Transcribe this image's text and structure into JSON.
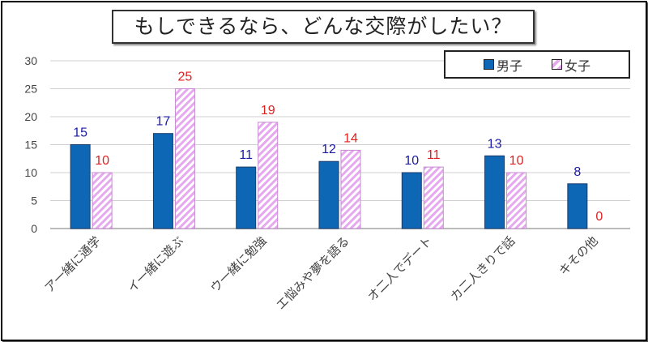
{
  "chart_data": {
    "type": "bar",
    "title": "もしできるなら、どんな交際がしたい？",
    "categories": [
      "ア一緒に通学",
      "イ一緒に遊ぶ",
      "ウ一緒に勉強",
      "エ悩みや夢を語る",
      "オ二人でデート",
      "カ二人きりで話",
      "キその他"
    ],
    "series": [
      {
        "name": "男子",
        "values": [
          15,
          17,
          11,
          12,
          10,
          13,
          8
        ],
        "color": "#0e67b5",
        "label_color": "#1a1aa6"
      },
      {
        "name": "女子",
        "values": [
          10,
          25,
          19,
          14,
          11,
          10,
          0
        ],
        "color": "#e6a8ef",
        "label_color": "#e02020",
        "pattern": "diagonal-stripes"
      }
    ],
    "ylim": [
      0,
      30
    ],
    "yticks": [
      0,
      5,
      10,
      15,
      20,
      25,
      30
    ],
    "grid": true,
    "legend_position": "top-right"
  }
}
